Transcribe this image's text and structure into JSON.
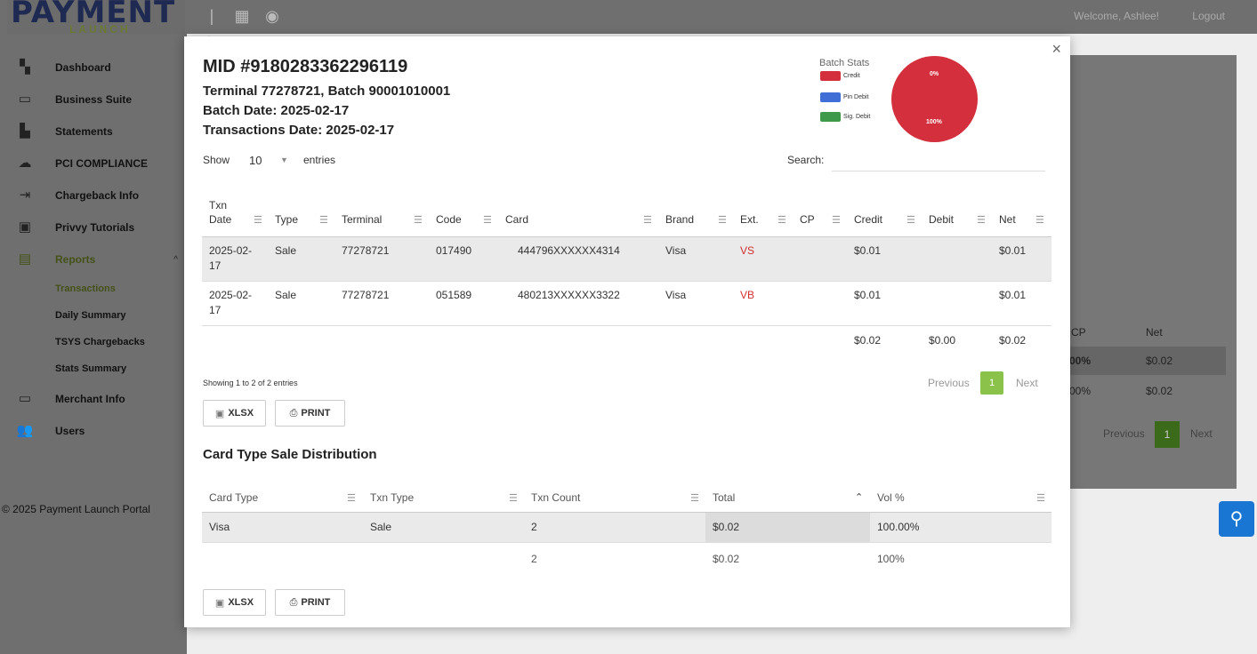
{
  "app": {
    "logo_main": "PAYMENT",
    "logo_sub": "LAUNCH",
    "welcome": "Welcome, Ashlee!",
    "logout": "Logout",
    "copyright": "© 2025 Payment Launch Portal"
  },
  "sidebar": {
    "items": [
      {
        "label": "Dashboard",
        "icon": "dashboard-icon"
      },
      {
        "label": "Business Suite",
        "icon": "laptop-icon"
      },
      {
        "label": "Statements",
        "icon": "documents-icon"
      },
      {
        "label": "PCI COMPLIANCE",
        "icon": "cloud-icon"
      },
      {
        "label": "Chargeback Info",
        "icon": "input-icon"
      },
      {
        "label": "Privvy Tutorials",
        "icon": "video-icon"
      },
      {
        "label": "Reports",
        "icon": "reports-icon"
      },
      {
        "label": "Merchant Info",
        "icon": "folder-icon"
      },
      {
        "label": "Users",
        "icon": "users-icon"
      }
    ],
    "sub_items": [
      "Transactions",
      "Daily Summary",
      "TSYS Chargebacks",
      "Stats Summary"
    ]
  },
  "background": {
    "col_cp": "CP",
    "col_net": "Net",
    "row1_pct": "00%",
    "row1_net": "$0.02",
    "row2_pct": "00%",
    "row2_net": "$0.02",
    "previous": "Previous",
    "page": "1",
    "next": "Next"
  },
  "modal": {
    "close": "×",
    "mid": "MID #9180283362296119",
    "terminal_batch": "Terminal 77278721, Batch 90001010001",
    "batch_date": "Batch Date: 2025-02-17",
    "txn_date": "Transactions Date: 2025-02-17",
    "batch_stats": {
      "title": "Batch Stats",
      "legend": [
        {
          "label": "Credit",
          "color": "#d32f3c"
        },
        {
          "label": "Pin Debit",
          "color": "#3f6fd6"
        },
        {
          "label": "Sig. Debit",
          "color": "#3e9a4a"
        }
      ],
      "pie_labels": {
        "top": "0%",
        "bottom": "100%"
      }
    },
    "show": "Show",
    "entries_value": "10",
    "entries": "entries",
    "search": "Search:",
    "columns": [
      "Txn\nDate",
      "Type",
      "Terminal",
      "Code",
      "Card",
      "Brand",
      "Ext.",
      "CP",
      "Credit",
      "Debit",
      "Net"
    ],
    "col_txn_top": "Txn",
    "col_txn_bottom": "Date",
    "rows": [
      {
        "date_a": "2025-02-",
        "date_b": "17",
        "type": "Sale",
        "terminal": "77278721",
        "code": "017490",
        "card": "444796XXXXXX4314",
        "brand": "Visa",
        "ext": "VS",
        "cp": "",
        "credit": "$0.01",
        "debit": "",
        "net": "$0.01"
      },
      {
        "date_a": "2025-02-",
        "date_b": "17",
        "type": "Sale",
        "terminal": "77278721",
        "code": "051589",
        "card": "480213XXXXXX3322",
        "brand": "Visa",
        "ext": "VB",
        "cp": "",
        "credit": "$0.01",
        "debit": "",
        "net": "$0.01"
      }
    ],
    "totals": {
      "credit": "$0.02",
      "debit": "$0.00",
      "net": "$0.02"
    },
    "showing": "Showing 1 to 2 of 2 entries",
    "previous": "Previous",
    "page": "1",
    "next": "Next",
    "xlsx": "XLSX",
    "print": "PRINT",
    "dist_title": "Card Type Sale Distribution",
    "dist_columns": [
      "Card Type",
      "Txn Type",
      "Txn Count",
      "Total",
      "Vol %"
    ],
    "dist_rows": [
      {
        "card_type": "Visa",
        "txn_type": "Sale",
        "count": "2",
        "total": "$0.02",
        "vol": "100.00%"
      }
    ],
    "dist_totals": {
      "count": "2",
      "total": "$0.02",
      "vol": "100%"
    }
  }
}
